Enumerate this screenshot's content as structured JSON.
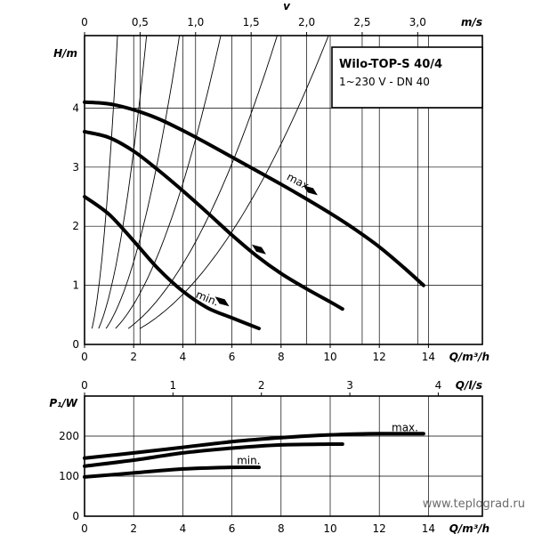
{
  "chart_data": [
    {
      "type": "line",
      "name": "pump-head-curves",
      "title": "Wilo-TOP-S 40/4",
      "subtitle": "1~230 V - DN 40",
      "xlabel": "Q/m³/h",
      "ylabel": "H/m",
      "top_axis_symbol": "v",
      "top_axis_label": "m/s",
      "xlim": [
        0,
        15.5
      ],
      "ylim": [
        0,
        5
      ],
      "x_ticks": [
        "0",
        "2",
        "4",
        "6",
        "8",
        "10",
        "12",
        "14"
      ],
      "y_ticks": [
        "0",
        "1",
        "2",
        "3",
        "4"
      ],
      "top_ticks": [
        "0",
        "0,5",
        "1,0",
        "1,5",
        "2,0",
        "2,5",
        "3,0"
      ],
      "top_tick_values": [
        0,
        0.5,
        1.0,
        1.5,
        2.0,
        2.5,
        3.0
      ],
      "velocity_per_m3h": 0.2212,
      "grid": true,
      "series": [
        {
          "name": "max.",
          "x": [
            0,
            1,
            2,
            3,
            4,
            5,
            6,
            7,
            8,
            9,
            10,
            11,
            12,
            13,
            13.8
          ],
          "y": [
            4.1,
            4.07,
            3.97,
            3.82,
            3.62,
            3.4,
            3.17,
            2.94,
            2.71,
            2.47,
            2.22,
            1.95,
            1.65,
            1.3,
            1.0
          ]
        },
        {
          "name": "",
          "x": [
            0,
            1,
            2,
            3,
            4,
            5,
            6,
            7,
            8,
            9,
            10,
            10.5
          ],
          "y": [
            3.6,
            3.5,
            3.27,
            2.95,
            2.6,
            2.23,
            1.85,
            1.5,
            1.2,
            0.95,
            0.72,
            0.6
          ]
        },
        {
          "name": "min.",
          "x": [
            0,
            1,
            2,
            3,
            4,
            5,
            6,
            7.1
          ],
          "y": [
            2.5,
            2.2,
            1.75,
            1.28,
            0.9,
            0.62,
            0.45,
            0.27
          ]
        }
      ],
      "system_curves_k": [
        2.9,
        0.82,
        0.35,
        0.17,
        0.085,
        0.053
      ],
      "annotations": [
        {
          "text": "max.",
          "x": 8.2,
          "y": 2.8
        },
        {
          "text": "min.",
          "x": 4.5,
          "y": 0.8
        }
      ]
    },
    {
      "type": "line",
      "name": "pump-power-curves",
      "xlabel": "Q/m³/h",
      "ylabel": "P₁/W",
      "top_axis_label": "Q/l/s",
      "xlim": [
        0,
        15.5
      ],
      "ylim": [
        0,
        300
      ],
      "x_ticks": [
        "0",
        "2",
        "4",
        "6",
        "8",
        "10",
        "12",
        "14"
      ],
      "y_ticks": [
        "0",
        "100",
        "200"
      ],
      "top_ticks": [
        "0",
        "1",
        "2",
        "3",
        "4"
      ],
      "top_tick_values": [
        0,
        1,
        2,
        3,
        4
      ],
      "ls_per_m3h": 0.27778,
      "grid": true,
      "series": [
        {
          "name": "max.",
          "x": [
            0,
            2,
            4,
            6,
            8,
            10,
            12,
            13.8
          ],
          "y": [
            145,
            158,
            172,
            186,
            196,
            203,
            206,
            206
          ]
        },
        {
          "name": "",
          "x": [
            0,
            2,
            4,
            6,
            8,
            10,
            10.5
          ],
          "y": [
            125,
            140,
            158,
            170,
            178,
            180,
            180
          ]
        },
        {
          "name": "min.",
          "x": [
            0,
            2,
            4,
            6,
            7.1
          ],
          "y": [
            98,
            108,
            118,
            122,
            122
          ]
        }
      ],
      "annotations": [
        {
          "text": "max.",
          "x": 12.5,
          "y": 212
        },
        {
          "text": "min.",
          "x": 6.2,
          "y": 130
        }
      ]
    }
  ],
  "watermark": "www.teplograd.ru"
}
